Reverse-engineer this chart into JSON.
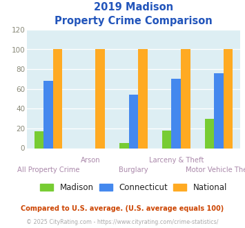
{
  "title_line1": "2019 Madison",
  "title_line2": "Property Crime Comparison",
  "categories": [
    "All Property Crime",
    "Arson",
    "Burglary",
    "Larceny & Theft",
    "Motor Vehicle Theft"
  ],
  "madison": [
    17,
    0,
    5,
    18,
    30
  ],
  "connecticut": [
    68,
    0,
    54,
    70,
    76
  ],
  "national": [
    100,
    100,
    100,
    100,
    100
  ],
  "madison_color": "#77cc33",
  "connecticut_color": "#4488ee",
  "national_color": "#ffaa22",
  "bg_color": "#ddeef3",
  "title_color": "#2255bb",
  "xlabel_color": "#aa88aa",
  "legend_label_color": "#222222",
  "footnote1": "Compared to U.S. average. (U.S. average equals 100)",
  "footnote2": "© 2025 CityRating.com - https://www.cityrating.com/crime-statistics/",
  "footnote1_color": "#cc4400",
  "footnote2_color": "#aaaaaa",
  "ylim": [
    0,
    120
  ],
  "yticks": [
    0,
    20,
    40,
    60,
    80,
    100,
    120
  ],
  "bar_width": 0.22,
  "group_positions": [
    0.5,
    1.5,
    2.5,
    3.5,
    4.5
  ]
}
